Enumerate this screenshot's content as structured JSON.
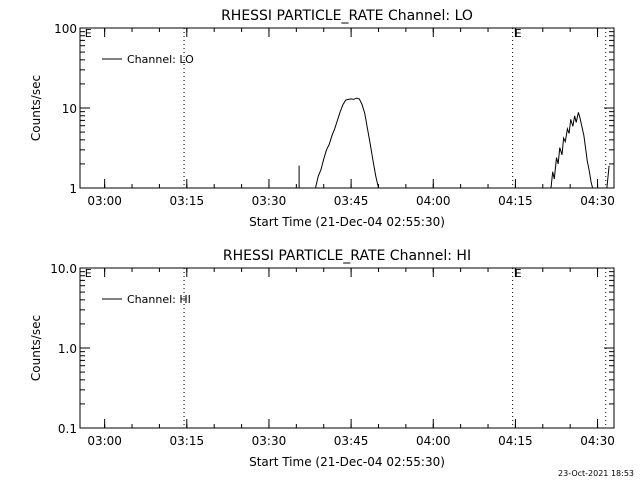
{
  "chart_data": [
    {
      "type": "line",
      "title": "RHESSI PARTICLE_RATE Channel: LO",
      "xlabel": "Start Time (21-Dec-04 02:55:30)",
      "ylabel": "Counts/sec",
      "yscale": "log",
      "ylim": [
        1,
        100
      ],
      "yticks": [
        1,
        10,
        100
      ],
      "ytick_labels": [
        "1",
        "10",
        "100"
      ],
      "xlim_minutes_from_start": [
        0,
        97.5
      ],
      "xtick_labels": [
        "03:00",
        "03:15",
        "03:30",
        "03:45",
        "04:00",
        "04:15",
        "04:30"
      ],
      "xtick_minutes": [
        4.5,
        19.5,
        34.5,
        49.5,
        64.5,
        79.5,
        94.5
      ],
      "xtick_minor_step": 5,
      "markers": [
        {
          "label": "E",
          "minute": 0.5
        },
        {
          "label": "E",
          "minute": 79.0
        }
      ],
      "vlines_minutes": [
        19.0,
        79.0,
        96.0
      ],
      "legend": {
        "label": "Channel: LO",
        "position": "top-left"
      },
      "series": [
        {
          "name": "Channel: LO",
          "segments": [
            {
              "x": [
                40.0,
                40.0
              ],
              "y": [
                1.0,
                1.9
              ]
            },
            {
              "x": [
                43.0,
                43.5,
                44.0,
                44.5,
                45.0,
                45.5,
                46.0,
                46.5,
                47.0,
                47.5,
                48.0,
                48.5,
                49.0,
                49.5,
                50.0,
                50.5,
                51.0,
                51.5,
                52.0,
                52.5,
                53.0,
                53.5,
                54.0,
                54.5
              ],
              "y": [
                1.0,
                1.4,
                1.7,
                2.3,
                3.0,
                3.5,
                4.5,
                5.5,
                7.0,
                9.0,
                11.0,
                12.5,
                12.8,
                13.0,
                12.8,
                13.3,
                13.0,
                11.0,
                8.5,
                5.5,
                3.5,
                2.2,
                1.4,
                1.0
              ]
            },
            {
              "x": [
                86.0,
                86.3,
                86.6,
                87.0,
                87.3,
                87.6,
                88.0,
                88.3,
                88.6,
                89.0,
                89.3,
                89.6,
                90.0,
                90.3,
                90.6,
                91.0,
                91.3,
                91.6,
                92.0,
                92.3,
                92.6,
                93.0,
                93.3,
                93.6,
                94.0
              ],
              "y": [
                1.0,
                1.6,
                1.3,
                2.4,
                2.0,
                3.2,
                2.6,
                4.2,
                3.8,
                5.5,
                4.8,
                7.2,
                5.9,
                8.0,
                6.6,
                8.8,
                7.5,
                6.0,
                4.5,
                3.2,
                2.2,
                1.6,
                1.2,
                1.0,
                1.0
              ]
            },
            {
              "x": [
                96.2,
                96.6
              ],
              "y": [
                1.0,
                1.9
              ]
            }
          ]
        }
      ]
    },
    {
      "type": "line",
      "title": "RHESSI PARTICLE_RATE Channel: HI",
      "xlabel": "Start Time (21-Dec-04 02:55:30)",
      "ylabel": "Counts/sec",
      "yscale": "log",
      "ylim": [
        0.1,
        10
      ],
      "yticks": [
        0.1,
        1,
        10
      ],
      "ytick_labels": [
        "0.1",
        "1.0",
        "10.0"
      ],
      "xlim_minutes_from_start": [
        0,
        97.5
      ],
      "xtick_labels": [
        "03:00",
        "03:15",
        "03:30",
        "03:45",
        "04:00",
        "04:15",
        "04:30"
      ],
      "xtick_minutes": [
        4.5,
        19.5,
        34.5,
        49.5,
        64.5,
        79.5,
        94.5
      ],
      "xtick_minor_step": 5,
      "markers": [
        {
          "label": "E",
          "minute": 0.5
        },
        {
          "label": "E",
          "minute": 79.0
        }
      ],
      "vlines_minutes": [
        19.0,
        79.0,
        96.0
      ],
      "legend": {
        "label": "Channel: HI",
        "position": "top-left"
      },
      "series": [
        {
          "name": "Channel: HI",
          "segments": []
        }
      ]
    }
  ],
  "footer": {
    "timestamp": "23-Oct-2021 18:53"
  }
}
